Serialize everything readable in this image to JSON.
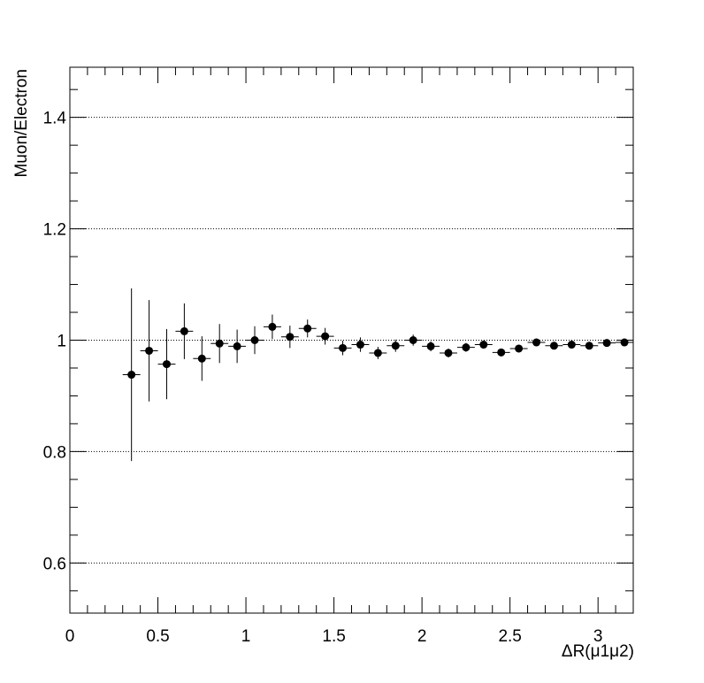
{
  "chart_data": {
    "type": "scatter",
    "title": "",
    "xlabel": "ΔR(μ1μ2)",
    "ylabel": "Muon/Electron",
    "xlim": [
      0,
      3.2
    ],
    "ylim": [
      0.51,
      1.49
    ],
    "grid": "horizontal-dotted",
    "x_ticks": [
      "0",
      "0.5",
      "1",
      "1.5",
      "2",
      "2.5",
      "3"
    ],
    "y_ticks": [
      "0.6",
      "0.8",
      "1",
      "1.2",
      "1.4"
    ],
    "bin_width": 0.1,
    "x": [
      0.35,
      0.45,
      0.55,
      0.65,
      0.75,
      0.85,
      0.95,
      1.05,
      1.15,
      1.25,
      1.35,
      1.45,
      1.55,
      1.65,
      1.75,
      1.85,
      1.95,
      2.05,
      2.15,
      2.25,
      2.35,
      2.45,
      2.55,
      2.65,
      2.75,
      2.85,
      2.95,
      3.05,
      3.15
    ],
    "y": [
      0.938,
      0.981,
      0.957,
      1.016,
      0.967,
      0.994,
      0.989,
      1.0,
      1.024,
      1.006,
      1.021,
      1.007,
      0.986,
      0.992,
      0.977,
      0.99,
      1.0,
      0.989,
      0.977,
      0.987,
      0.992,
      0.978,
      0.985,
      0.996,
      0.99,
      0.992,
      0.99,
      0.995,
      0.996
    ],
    "yerr": [
      0.155,
      0.091,
      0.063,
      0.05,
      0.04,
      0.035,
      0.03,
      0.025,
      0.022,
      0.02,
      0.016,
      0.015,
      0.013,
      0.013,
      0.011,
      0.011,
      0.01,
      0.009,
      0.008,
      0.008,
      0.007,
      0.007,
      0.007,
      0.006,
      0.006,
      0.006,
      0.006,
      0.005,
      0.005
    ]
  }
}
